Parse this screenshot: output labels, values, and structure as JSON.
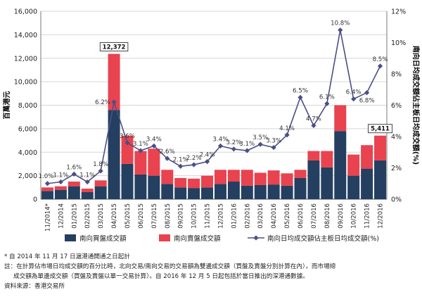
{
  "chart_data": {
    "type": "bar+line",
    "categories": [
      "11/2014*",
      "12/2014",
      "01/2015",
      "02/2015",
      "03/2015",
      "04/2015",
      "05/2015",
      "06/2015",
      "07/2015",
      "08/2015",
      "09/2015",
      "10/2015",
      "11/2015",
      "12/2015",
      "01/2016",
      "02/2016",
      "03/2016",
      "04/2016",
      "05/2016",
      "06/2016",
      "07/2016",
      "08/2016",
      "09/2016",
      "10/2016",
      "11/2016",
      "12/2016"
    ],
    "y_left": {
      "label": "百萬港元",
      "min": 0,
      "max": 16000,
      "ticks": [
        "0",
        "2,000",
        "4,000",
        "6,000",
        "8,000",
        "10,000",
        "12,000",
        "14,000",
        "16,000"
      ]
    },
    "y_right": {
      "label": "南向日均成交額佔主板日均成交額(%)",
      "min": 0,
      "max": 12,
      "ticks": [
        "0%",
        "2%",
        "4%",
        "6%",
        "8%",
        "10%",
        "12%"
      ]
    },
    "series": [
      {
        "name": "南向買盤成交額",
        "type": "bar",
        "color": "#243f60",
        "values": [
          700,
          800,
          1100,
          600,
          1100,
          7600,
          3000,
          2100,
          2000,
          1300,
          1000,
          950,
          1000,
          1300,
          1500,
          1150,
          1200,
          1250,
          1150,
          1800,
          3300,
          2700,
          5800,
          2000,
          2600,
          3300
        ]
      },
      {
        "name": "南向賣盤成交額",
        "type": "bar",
        "color": "#e8434f",
        "values": [
          300,
          300,
          400,
          300,
          500,
          4772,
          2400,
          2000,
          2300,
          1200,
          800,
          800,
          1000,
          1200,
          1000,
          1350,
          1050,
          1200,
          1050,
          700,
          800,
          1400,
          2200,
          1800,
          2000,
          2111
        ]
      },
      {
        "name": "南向日均成交額佔主板日均成交額(%)",
        "type": "line",
        "axis": "right",
        "color": "#4b4f86",
        "values": [
          1.0,
          1.1,
          1.6,
          1.1,
          1.8,
          6.2,
          3.6,
          3.1,
          3.4,
          2.6,
          2.1,
          2.2,
          2.4,
          3.4,
          3.2,
          3.1,
          3.5,
          3.3,
          4.1,
          6.5,
          4.7,
          6.1,
          10.8,
          6.4,
          6.8,
          8.5
        ],
        "labels": [
          "1.0%",
          "1.1%",
          "1.6%",
          "1.1%",
          "1.8%",
          "6.2%",
          "3.6%",
          "3.1%",
          "3.4%",
          "2.6%",
          "2.1%",
          "2.2%",
          "2.4%",
          "3.4%",
          "3.2%",
          "3.1%",
          "3.5%",
          "3.3%",
          "4.1%",
          "6.5%",
          "4.7%",
          "6.1%",
          "10.8%",
          "6.4%",
          "6.8%",
          "8.5%"
        ]
      }
    ],
    "callouts": [
      {
        "category": "04/2015",
        "text": "12,372"
      },
      {
        "category": "12/2016",
        "text": "5,411"
      }
    ],
    "legend": {
      "position": "bottom",
      "items": [
        "南向買盤成交額",
        "南向賣盤成交額",
        "南向日均成交額佔主板日均成交額(%)"
      ]
    }
  },
  "notes": {
    "note1": "* 自 2014 年 11 月 17 日滬港通開通之日起計",
    "note2a": "註：在計算佔市場日均成交額的百分比時，北向交易/南向交易的交易額為雙邊成交額（買盤及賣盤分別計算在內），而市場總",
    "note2b": "成交額為單邊成交額（買盤及賣盤以單一交易計算）。自 2016 年 12 月 5 日起包括於當日推出的深港通數據。",
    "source": "資料來源：香港交易所"
  }
}
